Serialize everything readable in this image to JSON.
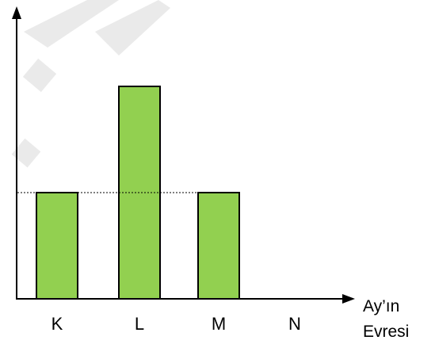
{
  "chart_data": {
    "type": "bar",
    "categories": [
      "K",
      "L",
      "M",
      "N"
    ],
    "values": [
      2,
      4,
      2,
      0
    ],
    "reference_line": 2,
    "xlabel_lines": [
      "Ay’ın",
      "Evresi"
    ],
    "ylabel": "",
    "ylim": [
      0,
      5
    ],
    "grid": false,
    "bar_color": "#92d050",
    "bar_border_color": "#000000",
    "axis_color": "#000000"
  }
}
